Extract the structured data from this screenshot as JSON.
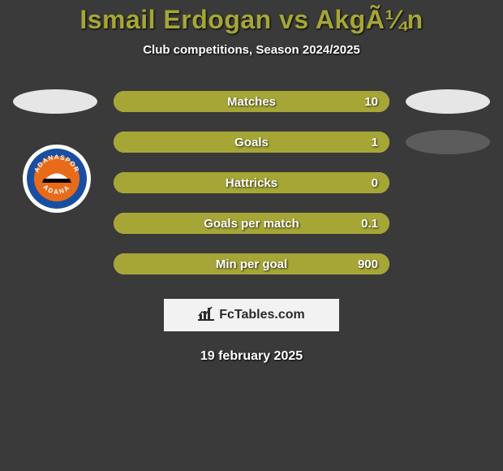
{
  "title": "Ismail Erdogan vs AkgÃ¼n",
  "subtitle": "Club competitions, Season 2024/2025",
  "stats": [
    {
      "label": "Matches",
      "value": "10",
      "fill_pct": 100
    },
    {
      "label": "Goals",
      "value": "1",
      "fill_pct": 100
    },
    {
      "label": "Hattricks",
      "value": "0",
      "fill_pct": 100
    },
    {
      "label": "Goals per match",
      "value": "0.1",
      "fill_pct": 100
    },
    {
      "label": "Min per goal",
      "value": "900",
      "fill_pct": 100
    }
  ],
  "colors": {
    "bar_fill": "#a6a637",
    "bar_bg": "#cfcf7a",
    "bubble_left": "#e6e6e6",
    "bubble_right_1": "#e6e6e6",
    "bubble_right_2": "#5c5c5c"
  },
  "left_bubble_rows": [
    0
  ],
  "right_bubble_rows": [
    0,
    1
  ],
  "club_badge": {
    "text_top": "ADANASPOR",
    "text_bottom": "ADANA",
    "ring_color": "#1a4ea0",
    "inner_color": "#e86b1a"
  },
  "brand": {
    "text": "FcTables.com"
  },
  "date": "19 february 2025"
}
